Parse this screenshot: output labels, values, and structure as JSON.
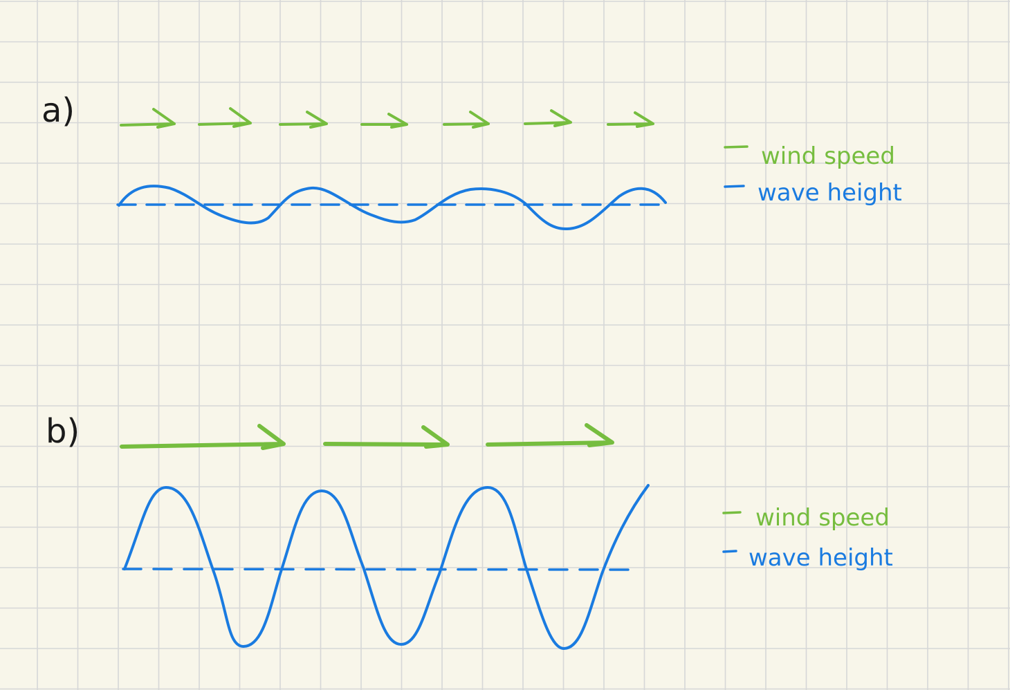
{
  "colors": {
    "background": "#f8f6ea",
    "grid": "#d6d7d7",
    "wind": "#76bd3f",
    "wave": "#1a7be0",
    "ink": "#1a1a1a"
  },
  "panel_a": {
    "label": "a)",
    "legend_wind": "wind speed",
    "legend_wave": "wave height"
  },
  "panel_b": {
    "label": "b)",
    "legend_wind": "wind speed",
    "legend_wave": "wave height"
  }
}
